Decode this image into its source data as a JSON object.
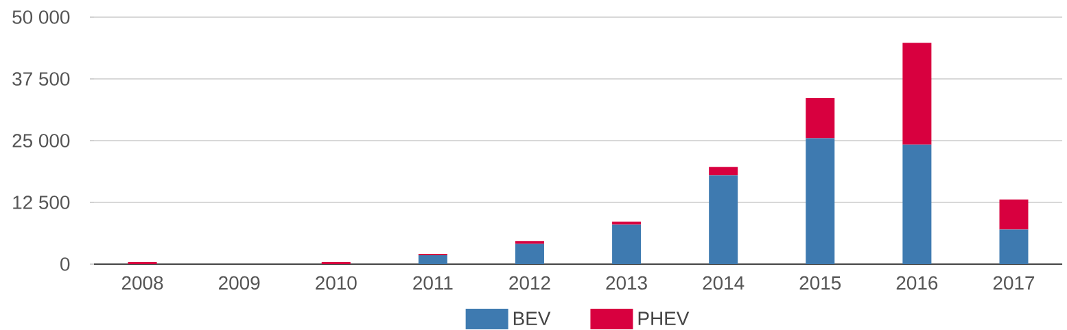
{
  "chart_data": {
    "type": "bar",
    "stacked": true,
    "categories": [
      "2008",
      "2009",
      "2010",
      "2011",
      "2012",
      "2013",
      "2014",
      "2015",
      "2016",
      "2017"
    ],
    "series": [
      {
        "name": "BEV",
        "color": "#3e7ab0",
        "values": [
          0,
          0,
          0,
          1800,
          4100,
          8000,
          18000,
          25500,
          24200,
          7000
        ]
      },
      {
        "name": "PHEV",
        "color": "#d8003f",
        "values": [
          400,
          0,
          400,
          300,
          600,
          600,
          1700,
          8100,
          20600,
          6100
        ]
      }
    ],
    "ylim": [
      0,
      50000
    ],
    "yticks": [
      0,
      {
        "value": 12500,
        "label": "12 500"
      },
      {
        "value": 25000,
        "label": "25 000"
      },
      {
        "value": 37500,
        "label": "37 500"
      },
      {
        "value": 50000,
        "label": "50 000"
      }
    ],
    "grid": "y",
    "legend": "bottom"
  }
}
